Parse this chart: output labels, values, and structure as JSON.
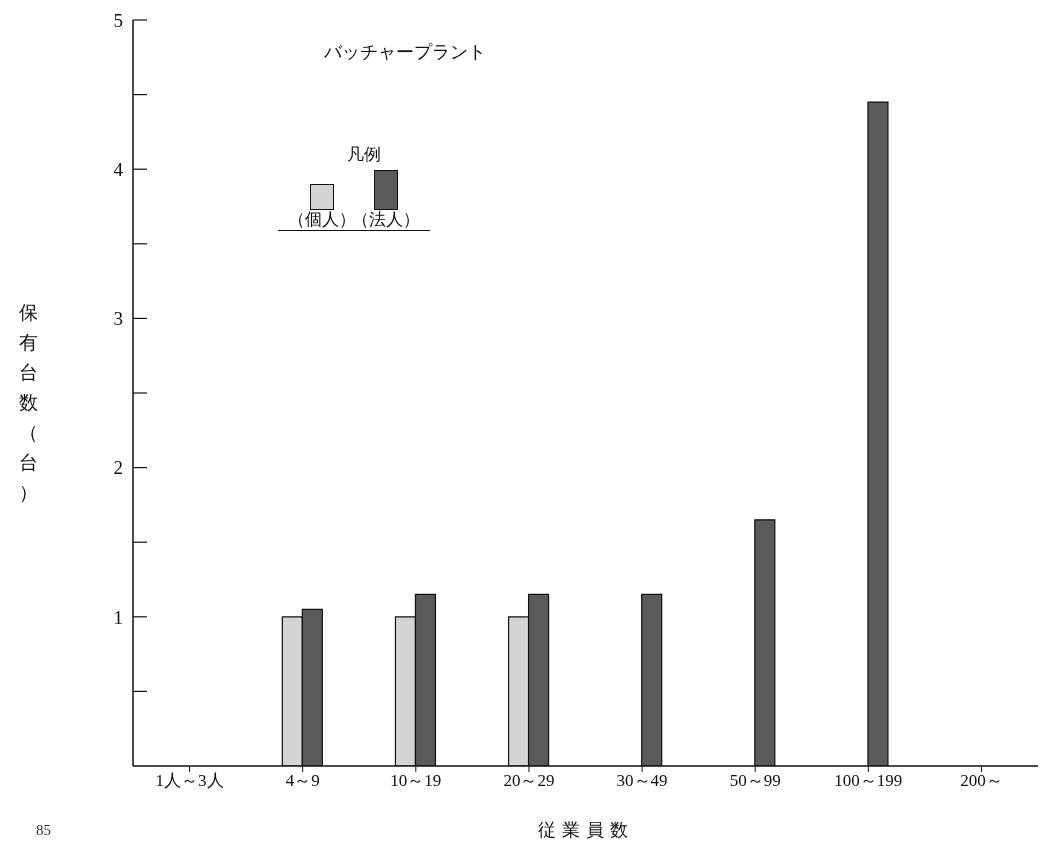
{
  "chart_data": {
    "type": "bar",
    "title": "バッチャープラント",
    "xlabel": "従業員数",
    "ylabel": "保有台数（台）",
    "categories": [
      "1人～3人",
      "4～9",
      "10～19",
      "20～29",
      "30～49",
      "50～99",
      "100～199",
      "200～"
    ],
    "series": [
      {
        "name": "（個人）",
        "color": "#d4d4d4",
        "values": [
          null,
          1.0,
          1.0,
          1.0,
          null,
          null,
          null,
          null
        ]
      },
      {
        "name": "（法人）",
        "color": "#5a5a5a",
        "values": [
          null,
          1.05,
          1.15,
          1.15,
          1.15,
          1.65,
          4.45,
          null
        ]
      }
    ],
    "legend_title": "凡例",
    "legend": "top left",
    "ylim": [
      0,
      5
    ],
    "yticks": [
      {
        "value": 0.5,
        "label": null
      },
      1,
      {
        "value": 1.5,
        "label": null
      },
      2,
      {
        "value": 2.5,
        "label": null
      },
      3,
      {
        "value": 3.5,
        "label": null
      },
      4,
      {
        "value": 4.5,
        "label": null
      },
      5
    ],
    "grid": false,
    "annotations": [
      "85"
    ]
  }
}
